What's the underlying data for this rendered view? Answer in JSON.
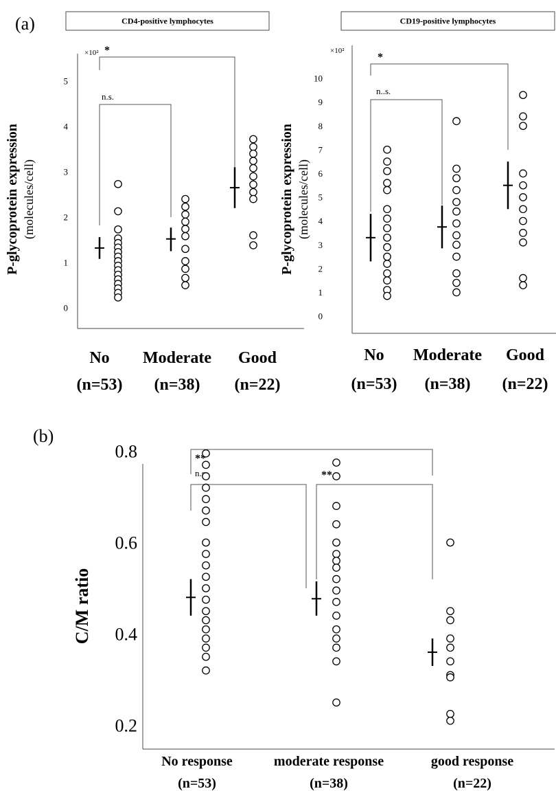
{
  "panels": {
    "a": {
      "label": "(a)"
    },
    "b": {
      "label": "(b)"
    }
  },
  "colors": {
    "ink": "#000000",
    "axis": "#4a4a4a",
    "bracket": "#555555",
    "marker_fill": "#ffffff"
  },
  "chart_data": [
    {
      "id": "cd4",
      "panel": "(a)",
      "type": "scatter",
      "title": "CD4-positive lymphocytes",
      "ylabel": "P-glycoprotein expression",
      "ylabel_sub": "(molecules/cell)",
      "y_scale_label": "×10²",
      "ylim": [
        0,
        5
      ],
      "yticks": [
        "0",
        "1",
        "2",
        "3",
        "4",
        "5"
      ],
      "categories": [
        {
          "name": "No",
          "n": "(n=53)"
        },
        {
          "name": "Moderate",
          "n": "(n=38)"
        },
        {
          "name": "Good",
          "n": "(n=22)"
        }
      ],
      "groups": [
        {
          "values": [
            2.73,
            2.13,
            1.73,
            1.53,
            1.43,
            1.33,
            1.23,
            1.13,
            1.03,
            0.93,
            0.83,
            0.73,
            0.63,
            0.53,
            0.43,
            0.33,
            0.23
          ],
          "mean": 1.32,
          "sd_low": 1.08,
          "sd_high": 1.56
        },
        {
          "values": [
            2.4,
            2.23,
            2.06,
            1.9,
            1.74,
            1.58,
            1.3,
            1.03,
            0.86,
            0.66,
            0.5
          ],
          "mean": 1.52,
          "sd_low": 1.25,
          "sd_high": 1.77
        },
        {
          "values": [
            3.72,
            3.55,
            3.4,
            3.24,
            3.08,
            2.9,
            2.72,
            2.55,
            2.4,
            1.6,
            1.38
          ],
          "mean": 2.65,
          "sd_low": 2.2,
          "sd_high": 3.1
        }
      ],
      "brackets": [
        {
          "from": 0,
          "to": 2,
          "label": "*"
        },
        {
          "from": 0,
          "to": 1,
          "label": "n.s."
        }
      ]
    },
    {
      "id": "cd19",
      "panel": "(a)",
      "type": "scatter",
      "title": "CD19-positive lymphocytes",
      "ylabel": "P-glycoprotein expression",
      "ylabel_sub": "(molecules/cell)",
      "y_scale_label": "×10²",
      "ylim": [
        0,
        10
      ],
      "yticks": [
        "0",
        "1",
        "2",
        "3",
        "4",
        "5",
        "6",
        "7",
        "8",
        "9",
        "10"
      ],
      "categories": [
        {
          "name": "No",
          "n": "(n=53)"
        },
        {
          "name": "Moderate",
          "n": "(n=38)"
        },
        {
          "name": "Good",
          "n": "(n=22)"
        }
      ],
      "groups": [
        {
          "values": [
            7.0,
            6.5,
            6.1,
            5.6,
            5.3,
            4.5,
            4.1,
            3.7,
            3.3,
            2.9,
            2.5,
            2.2,
            1.8,
            1.5,
            1.1,
            0.85
          ],
          "mean": 3.3,
          "sd_low": 2.3,
          "sd_high": 4.3
        },
        {
          "values": [
            8.2,
            6.2,
            5.8,
            5.3,
            4.8,
            4.4,
            3.9,
            3.4,
            3.0,
            2.5,
            1.8,
            1.4,
            1.0
          ],
          "mean": 3.75,
          "sd_low": 2.85,
          "sd_high": 4.65
        },
        {
          "values": [
            9.3,
            8.4,
            8.0,
            6.0,
            5.5,
            5.0,
            4.5,
            4.0,
            3.5,
            3.1,
            1.6,
            1.3
          ],
          "mean": 5.5,
          "sd_low": 4.5,
          "sd_high": 6.5
        }
      ],
      "brackets": [
        {
          "from": 0,
          "to": 2,
          "label": "*"
        },
        {
          "from": 0,
          "to": 1,
          "label": "n..s."
        }
      ]
    },
    {
      "id": "cm",
      "panel": "(b)",
      "type": "scatter",
      "title": "",
      "ylabel": "C/M ratio",
      "ylim": [
        0.13,
        0.93
      ],
      "yticks": [
        "0.2",
        "0.4",
        "0.6",
        "0.8"
      ],
      "categories": [
        {
          "name": "No response",
          "n": "(n=53)"
        },
        {
          "name": "moderate response",
          "n": "(n=38)"
        },
        {
          "name": "good response",
          "n": "(n=22)"
        }
      ],
      "groups": [
        {
          "values": [
            0.795,
            0.77,
            0.745,
            0.72,
            0.695,
            0.67,
            0.645,
            0.6,
            0.575,
            0.55,
            0.525,
            0.5,
            0.475,
            0.45,
            0.43,
            0.41,
            0.39,
            0.37,
            0.35,
            0.32
          ],
          "mean": 0.48,
          "sd_low": 0.44,
          "sd_high": 0.52
        },
        {
          "values": [
            0.775,
            0.745,
            0.68,
            0.64,
            0.6,
            0.575,
            0.56,
            0.545,
            0.52,
            0.495,
            0.47,
            0.44,
            0.41,
            0.39,
            0.37,
            0.34,
            0.25
          ],
          "mean": 0.477,
          "sd_low": 0.44,
          "sd_high": 0.515
        },
        {
          "values": [
            0.6,
            0.45,
            0.43,
            0.39,
            0.37,
            0.34,
            0.31,
            0.305,
            0.225,
            0.21
          ],
          "mean": 0.36,
          "sd_low": 0.33,
          "sd_high": 0.39
        }
      ],
      "brackets": [
        {
          "from": 0,
          "to": 2,
          "label": "**"
        },
        {
          "from": 0,
          "to": 1,
          "label": "n.s."
        },
        {
          "from": 1,
          "to": 2,
          "label": "**"
        }
      ]
    }
  ]
}
